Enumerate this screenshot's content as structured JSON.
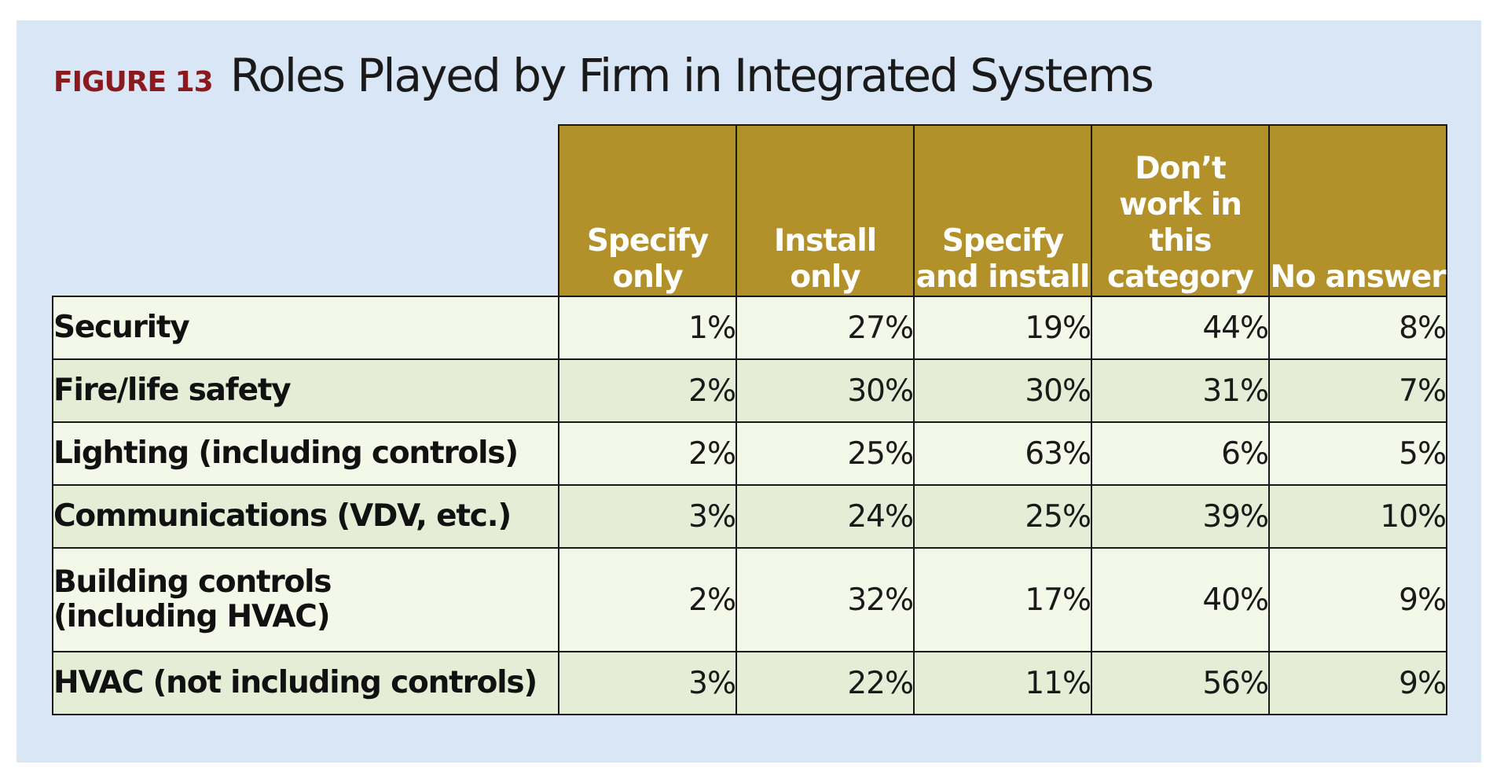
{
  "figure": {
    "label": "FIGURE 13",
    "title": "Roles Played by Firm in Integrated Systems"
  },
  "chart_data": {
    "type": "table",
    "title": "Roles Played by Firm in Integrated Systems",
    "columns": [
      "Specify only",
      "Install only",
      "Specify and install",
      "Don’t work in this category",
      "No answer"
    ],
    "rows": [
      {
        "label": "Security",
        "values": [
          "1%",
          "27%",
          "19%",
          "44%",
          "8%"
        ]
      },
      {
        "label": "Fire/life safety",
        "values": [
          "2%",
          "30%",
          "30%",
          "31%",
          "7%"
        ]
      },
      {
        "label": "Lighting (including controls)",
        "values": [
          "2%",
          "25%",
          "63%",
          "6%",
          "5%"
        ]
      },
      {
        "label": "Communications (VDV, etc.)",
        "values": [
          "3%",
          "24%",
          "25%",
          "39%",
          "10%"
        ]
      },
      {
        "label": "Building controls\n(including HVAC)",
        "values": [
          "2%",
          "32%",
          "17%",
          "40%",
          "9%"
        ]
      },
      {
        "label": "HVAC (not including controls)",
        "values": [
          "3%",
          "22%",
          "11%",
          "56%",
          "9%"
        ]
      }
    ]
  },
  "colors": {
    "background": "#d8e6f5",
    "header": "#b2912a",
    "row_light": "#f4f8e9",
    "row_dark": "#e6edd6",
    "figure_label": "#8b1a1e"
  }
}
